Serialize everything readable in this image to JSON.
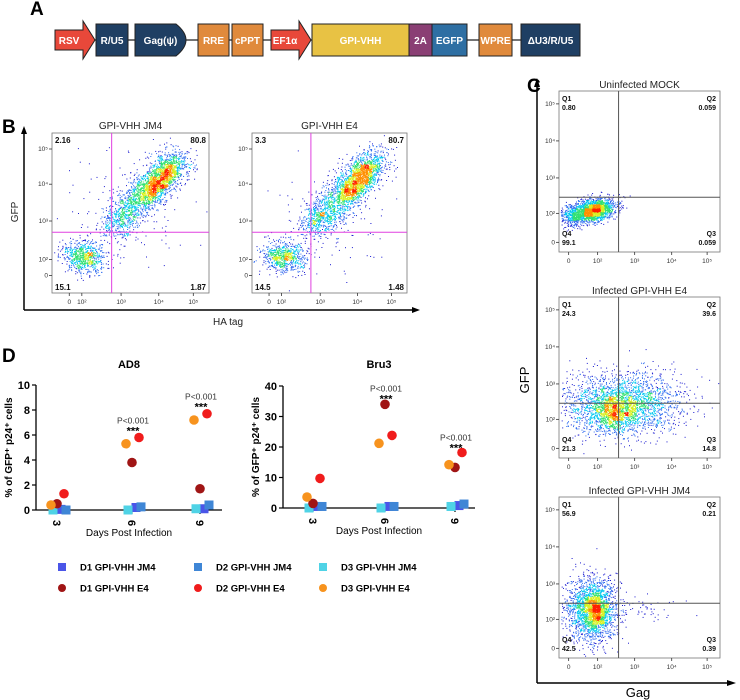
{
  "panel_a": {
    "label": "A",
    "elements": [
      {
        "label": "RSV",
        "shape": "arrow",
        "color": "#e8483a"
      },
      {
        "label": "R/U5",
        "shape": "box",
        "color": "#1f3f63"
      },
      {
        "label": "Gag(ψ)",
        "shape": "notched",
        "color": "#1f3f63"
      },
      {
        "label": "RRE",
        "shape": "box",
        "color": "#e08a3c"
      },
      {
        "label": "cPPT",
        "shape": "box",
        "color": "#e08a3c"
      },
      {
        "label": "EF1α",
        "shape": "arrow",
        "color": "#e8483a"
      },
      {
        "label": "GPI-VHH",
        "shape": "box",
        "color": "#e8c244"
      },
      {
        "label": "2A",
        "shape": "box",
        "color": "#8a3f74"
      },
      {
        "label": "EGFP",
        "shape": "box",
        "color": "#2e6fa3"
      },
      {
        "label": "WPRE",
        "shape": "box",
        "color": "#e08a3c"
      },
      {
        "label": "ΔU3/R/U5",
        "shape": "box",
        "color": "#1f3f63"
      }
    ]
  },
  "panel_b": {
    "label": "B",
    "ylabel": "GFP",
    "xlabel": "HA tag",
    "x_ticks": [
      "0",
      "10²",
      "10³",
      "10⁴",
      "10⁵"
    ],
    "y_ticks": [
      "0",
      "10²",
      "10³",
      "10⁴",
      "10⁵"
    ],
    "gate_color": "#e040e0",
    "plots": [
      {
        "title": "GPI-VHH JM4",
        "upper_left": "2.16",
        "upper_right": "80.8",
        "lower_left": "15.1",
        "lower_right": "1.87"
      },
      {
        "title": "GPI-VHH E4",
        "upper_left": "3.3",
        "upper_right": "80.7",
        "lower_left": "14.5",
        "lower_right": "1.48"
      }
    ]
  },
  "panel_c": {
    "label": "C",
    "ylabel": "GFP",
    "xlabel": "Gag",
    "x_ticks": [
      "0",
      "10²",
      "10³",
      "10⁴",
      "10⁵"
    ],
    "y_ticks": [
      "0",
      "10²",
      "10³",
      "10⁴",
      "10⁵"
    ],
    "plots": [
      {
        "title": "Uninfected MOCK",
        "Q1": "0.80",
        "Q2": "0.059",
        "Q3": "0.059",
        "Q4": "99.1"
      },
      {
        "title": "Infected GPI-VHH E4",
        "Q1": "24.3",
        "Q2": "39.6",
        "Q3": "14.8",
        "Q4": "21.3"
      },
      {
        "title": "Infected GPI-VHH JM4",
        "Q1": "56.9",
        "Q2": "0.21",
        "Q3": "0.39",
        "Q4": "42.5"
      }
    ],
    "quadrant_names": [
      "Q1",
      "Q2",
      "Q3",
      "Q4"
    ]
  },
  "panel_d_label": "D",
  "chart_data": [
    {
      "type": "scatter",
      "title": "AD8",
      "xlabel": "Days Post Infection",
      "ylabel": "% of GFP⁺ p24⁺ cells",
      "categories": [
        "3",
        "6",
        "9"
      ],
      "ylim": [
        0,
        10
      ],
      "yticks": [
        0,
        2,
        4,
        6,
        8,
        10
      ],
      "series": [
        {
          "name": "D1 GPI-VHH JM4",
          "marker": "square",
          "color": "#4a55e8",
          "values": [
            0.05,
            0.2,
            0.1
          ]
        },
        {
          "name": "D2 GPI-VHH JM4",
          "marker": "square",
          "color": "#3f86d6",
          "values": [
            0.0,
            0.25,
            0.4
          ]
        },
        {
          "name": "D3 GPI-VHH JM4",
          "marker": "square",
          "color": "#4fd3e6",
          "values": [
            0.0,
            0.0,
            0.1
          ]
        },
        {
          "name": "D1 GPI-VHH E4",
          "marker": "circle",
          "color": "#a01515",
          "values": [
            0.5,
            3.8,
            1.7
          ]
        },
        {
          "name": "D2 GPI-VHH E4",
          "marker": "circle",
          "color": "#f01c1c",
          "values": [
            1.3,
            5.8,
            7.7
          ]
        },
        {
          "name": "D3 GPI-VHH E4",
          "marker": "circle",
          "color": "#f7931e",
          "values": [
            0.4,
            5.3,
            7.2
          ]
        }
      ],
      "annotations": [
        {
          "category": "6",
          "pvalue": "P<0.001",
          "stars": "***",
          "at": 6.3
        },
        {
          "category": "9",
          "pvalue": "P<0.001",
          "stars": "***",
          "at": 8.2
        }
      ]
    },
    {
      "type": "scatter",
      "title": "Bru3",
      "xlabel": "Days Post Infection",
      "ylabel": "% of GFP⁺ p24⁺ cells",
      "categories": [
        "3",
        "6",
        "9"
      ],
      "ylim": [
        0,
        40
      ],
      "yticks": [
        0,
        10,
        20,
        30,
        40
      ],
      "series": [
        {
          "name": "D1 GPI-VHH JM4",
          "marker": "square",
          "color": "#4a55e8",
          "values": [
            0.5,
            0.5,
            0.8
          ]
        },
        {
          "name": "D2 GPI-VHH JM4",
          "marker": "square",
          "color": "#3f86d6",
          "values": [
            0.5,
            0.5,
            1.3
          ]
        },
        {
          "name": "D3 GPI-VHH JM4",
          "marker": "square",
          "color": "#4fd3e6",
          "values": [
            0.0,
            0.0,
            0.5
          ]
        },
        {
          "name": "D1 GPI-VHH E4",
          "marker": "circle",
          "color": "#a01515",
          "values": [
            1.5,
            34.0,
            13.3
          ]
        },
        {
          "name": "D2 GPI-VHH E4",
          "marker": "circle",
          "color": "#f01c1c",
          "values": [
            9.7,
            23.8,
            18.2
          ]
        },
        {
          "name": "D3 GPI-VHH E4",
          "marker": "circle",
          "color": "#f7931e",
          "values": [
            3.6,
            21.2,
            14.2
          ]
        }
      ],
      "annotations": [
        {
          "category": "6",
          "pvalue": "P<0.001",
          "stars": "***",
          "at": 35.5
        },
        {
          "category": "9",
          "pvalue": "P<0.001",
          "stars": "***",
          "at": 19.5
        }
      ]
    }
  ]
}
